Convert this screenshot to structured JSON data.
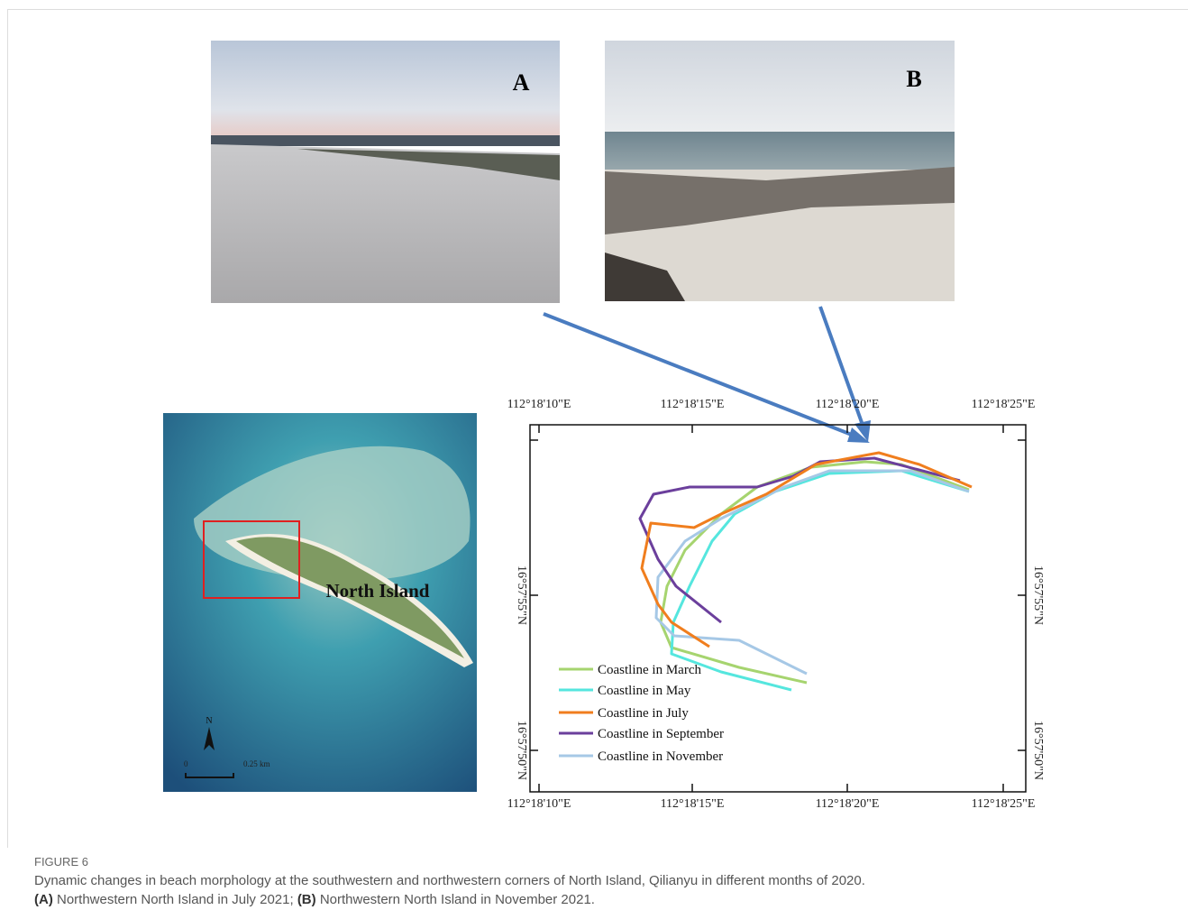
{
  "figure": {
    "panels": [
      {
        "label": "A"
      },
      {
        "label": "B"
      }
    ],
    "map": {
      "label": "North Island",
      "north": "N",
      "scale_start": "0",
      "scale_end": "0.25 km"
    },
    "plot": {
      "x_ticks": [
        "112°18'10\"E",
        "112°18'15\"E",
        "112°18'20\"E",
        "112°18'25\"E"
      ],
      "y_ticks": [
        "16°57'55\"N",
        "16°57'50\"N"
      ],
      "legend": [
        {
          "name": "Coastline in March",
          "color": "#a6d46f"
        },
        {
          "name": "Coastline in May",
          "color": "#55e6de"
        },
        {
          "name": "Coastline in July",
          "color": "#f07e1e"
        },
        {
          "name": "Coastline in September",
          "color": "#6b3f9c"
        },
        {
          "name": "Coastline in November",
          "color": "#a6c8e6"
        }
      ]
    }
  },
  "caption": {
    "label": "FIGURE 6",
    "text": "Dynamic changes in beach morphology at the southwestern and northwestern corners of North Island, Qilianyu in different months of 2020.",
    "a_label": "(A)",
    "a_text": "Northwestern North Island in July 2021;",
    "b_label": "(B)",
    "b_text": "Northwestern North Island in November 2021."
  }
}
